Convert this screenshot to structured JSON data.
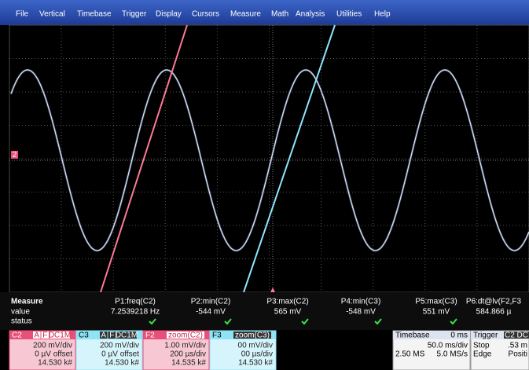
{
  "menu": [
    "File",
    "Vertical",
    "Timebase",
    "Trigger",
    "Display",
    "Cursors",
    "Measure",
    "Math",
    "Analysis",
    "Utilities",
    "Help"
  ],
  "screen": {
    "channel_marker": "2"
  },
  "measure": {
    "title": "Measure",
    "row_labels": [
      "value",
      "status"
    ],
    "columns": [
      {
        "name": "P1:freq(C2)",
        "value": "7.2539218 Hz"
      },
      {
        "name": "P2:min(C2)",
        "value": "-544 mV"
      },
      {
        "name": "P3:max(C2)",
        "value": "565 mV"
      },
      {
        "name": "P4:min(C3)",
        "value": "-548 mV"
      },
      {
        "name": "P5:max(C3)",
        "value": "551 mV"
      },
      {
        "name": "P6:dt@lv(F2,F3",
        "value": "584.866 µ"
      }
    ]
  },
  "channels": [
    {
      "name": "C2",
      "badges": [
        "A",
        "F",
        "DC1M"
      ],
      "lines": [
        "200 mV/div",
        "0 µV offset",
        "14.530 k#"
      ]
    },
    {
      "name": "C3",
      "badges": [
        "A",
        "F",
        "DC1M"
      ],
      "lines": [
        "200 mV/div",
        "0 µV offset",
        "14.530 k#"
      ]
    },
    {
      "name": "F2",
      "badges": [
        "zoom(C2)"
      ],
      "lines": [
        "1.00 mV/div",
        "200 µs/div",
        "14.535 k#"
      ]
    },
    {
      "name": "F3",
      "badges": [
        "zoom(C3)"
      ],
      "lines": [
        "00 mV/div",
        "00 µs/div",
        "14.530 k#"
      ]
    }
  ],
  "timebase": {
    "title": "Timebase",
    "delay": "0 ms",
    "scale": "50.0 ms/div",
    "samples": "2.50 MS",
    "rate": "5.0 MS/s"
  },
  "trigger": {
    "title": "Trigger",
    "badge": "C2 DC",
    "mode": "Stop",
    "level": ".53 m",
    "type": "Edge",
    "slope": "Positi"
  }
}
